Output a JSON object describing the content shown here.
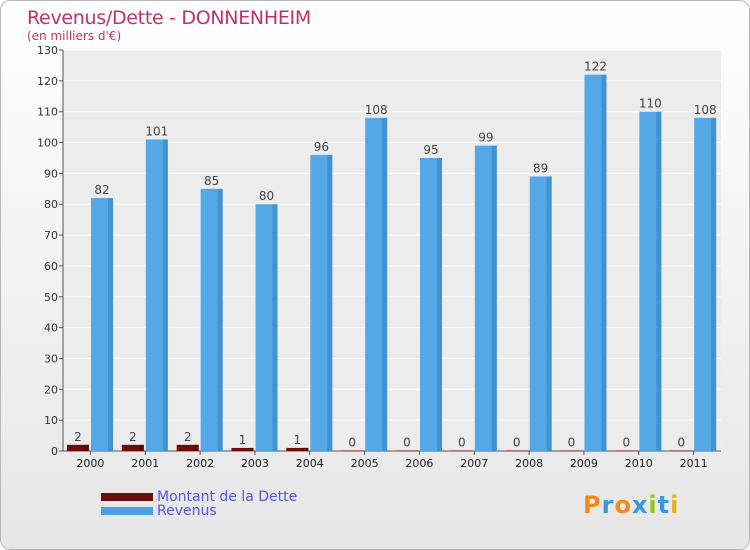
{
  "header": {
    "title": "Revenus/Dette - DONNENHEIM",
    "subtitle": "(en milliers d'€)"
  },
  "legend": {
    "items": [
      {
        "label": "Montant de la Dette",
        "color": "#6b0d0d"
      },
      {
        "label": "Revenus",
        "color": "#4aa0e0"
      }
    ]
  },
  "logo": {
    "text": "Proxiti",
    "letters": [
      "P",
      "r",
      "o",
      "x",
      "i",
      "t",
      "i"
    ],
    "colors": [
      "#f08a1c",
      "#3a9ad9",
      "#f08a1c",
      "#3a9ad9",
      "#9ac31c",
      "#3a9ad9",
      "#e8b21c"
    ]
  },
  "chart_data": {
    "type": "bar",
    "title": "Revenus/Dette - DONNENHEIM",
    "subtitle": "(en milliers d'€)",
    "categories": [
      "2000",
      "2001",
      "2002",
      "2003",
      "2004",
      "2005",
      "2006",
      "2007",
      "2008",
      "2009",
      "2010",
      "2011"
    ],
    "series": [
      {
        "name": "Montant de la Dette",
        "color": "#6b0d0d",
        "values": [
          2,
          2,
          2,
          1,
          1,
          0,
          0,
          0,
          0,
          0,
          0,
          0
        ]
      },
      {
        "name": "Revenus",
        "color": "#4aa0e0",
        "values": [
          82,
          101,
          85,
          80,
          96,
          108,
          95,
          99,
          89,
          122,
          110,
          108
        ]
      }
    ],
    "ylim": [
      0,
      130
    ],
    "yticks": [
      0,
      10,
      20,
      30,
      40,
      50,
      60,
      70,
      80,
      90,
      100,
      110,
      120,
      130
    ],
    "grid": true,
    "legend_position": "bottom-left"
  }
}
